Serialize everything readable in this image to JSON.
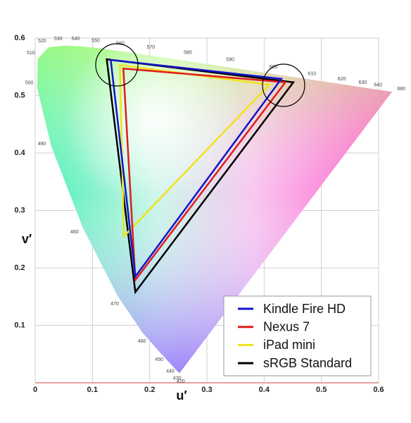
{
  "chart_data": {
    "type": "chromaticity",
    "xlabel": "u′",
    "ylabel": "v′",
    "xlim": [
      0,
      0.6
    ],
    "ylim": [
      0,
      0.6
    ],
    "xticks": [
      0,
      0.1,
      0.2,
      0.3,
      0.4,
      0.5,
      0.6
    ],
    "yticks": [
      0.1,
      0.2,
      0.3,
      0.4,
      0.5,
      0.6
    ],
    "grid": true,
    "legend": "lower right",
    "spectral_locus": {
      "labels": [
        "420",
        "430",
        "440",
        "450",
        "460",
        "470",
        "480",
        "490",
        "500",
        "510",
        "520",
        "530",
        "540",
        "550",
        "560",
        "570",
        "580",
        "590",
        "600",
        "610",
        "620",
        "630",
        "640",
        "680"
      ],
      "x": [
        0.2522,
        0.2461,
        0.2347,
        0.2161,
        0.1877,
        0.1441,
        0.0828,
        0.0282,
        0.0035,
        0.0046,
        0.0231,
        0.0501,
        0.0792,
        0.1127,
        0.1531,
        0.2026,
        0.2623,
        0.3315,
        0.4035,
        0.4692,
        0.5203,
        0.5565,
        0.583,
        0.6234
      ],
      "values": [
        0.0169,
        0.0226,
        0.035,
        0.0549,
        0.0871,
        0.151,
        0.2708,
        0.4117,
        0.5131,
        0.5638,
        0.5837,
        0.5868,
        0.5856,
        0.5821,
        0.5766,
        0.5694,
        0.5604,
        0.5501,
        0.5393,
        0.5296,
        0.5219,
        0.5165,
        0.5125,
        0.5065
      ]
    },
    "series": [
      {
        "name": "Kindle Fire HD",
        "color": "#1414c8",
        "x": [
          0.132,
          0.43,
          0.175
        ],
        "values": [
          0.562,
          0.529,
          0.185
        ]
      },
      {
        "name": "Nexus 7",
        "color": "#e01c1c",
        "x": [
          0.154,
          0.437,
          0.175
        ],
        "values": [
          0.547,
          0.523,
          0.179
        ]
      },
      {
        "name": "iPad mini",
        "color": "#f2e21a",
        "x": [
          0.148,
          0.409,
          0.155
        ],
        "values": [
          0.553,
          0.519,
          0.255
        ]
      },
      {
        "name": "sRGB Standard",
        "color": "#000000",
        "x": [
          0.125,
          0.451,
          0.175
        ],
        "values": [
          0.563,
          0.523,
          0.158
        ]
      }
    ]
  }
}
